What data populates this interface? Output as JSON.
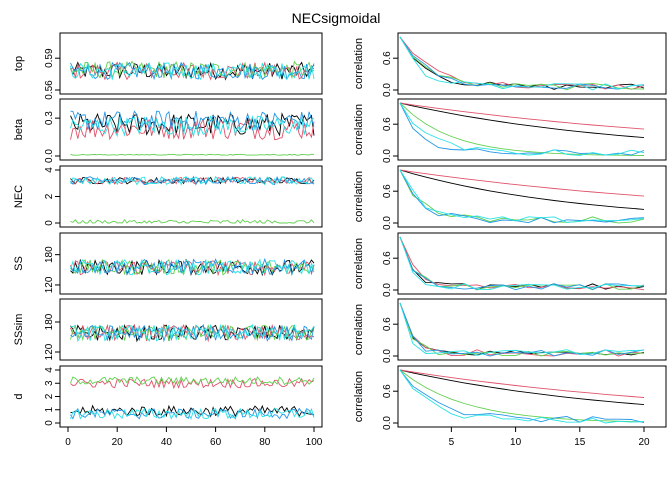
{
  "title": "NECsigmoidal",
  "trace": {
    "x_ticks": [
      "0",
      "20",
      "40",
      "60",
      "80",
      "100"
    ],
    "xlim": [
      0,
      100
    ]
  },
  "acf": {
    "ylabel": "correlation",
    "x_ticks": [
      "5",
      "10",
      "15",
      "20"
    ],
    "xlim": [
      1,
      20
    ],
    "ylim": [
      0,
      1
    ],
    "y_ticks": [
      "0.0",
      "0.6"
    ]
  },
  "series_colors": [
    "#000000",
    "#DF536B",
    "#61D04F",
    "#2297E6",
    "#28E2E5"
  ],
  "chart_data": {
    "type": "line",
    "description_kind": "MCMC trace plots (left) and autocorrelation plots (right)",
    "chains": 5,
    "iterations": 100,
    "parameters": [
      {
        "name": "top",
        "ylim": [
          0.56,
          0.61
        ],
        "y_ticks": [
          {
            "label": "0.56",
            "value": 0.56
          },
          {
            "label": "0.59",
            "value": 0.59
          }
        ],
        "trace": {
          "levels": [
            0.578,
            0.578,
            0.579,
            0.578,
            0.578
          ],
          "spread": [
            0.008,
            0.008,
            0.008,
            0.008,
            0.008
          ]
        },
        "acf_decay": [
          2.0,
          2.5,
          2.0,
          2.0,
          1.5
        ]
      },
      {
        "name": "beta",
        "ylim": [
          0.0,
          0.42
        ],
        "y_ticks": [
          {
            "label": "0.0",
            "value": 0.0
          },
          {
            "label": "0.3",
            "value": 0.3
          }
        ],
        "trace": {
          "levels": [
            0.25,
            0.22,
            0.01,
            0.28,
            0.24
          ],
          "spread": [
            0.09,
            0.09,
            0.004,
            0.08,
            0.08
          ]
        },
        "acf_decay": [
          18.0,
          28.0,
          4.0,
          1.5,
          2.0
        ]
      },
      {
        "name": "NEC",
        "ylim": [
          0,
          4
        ],
        "y_ticks": [
          {
            "label": "0",
            "value": 0
          },
          {
            "label": "2",
            "value": 2
          },
          {
            "label": "4",
            "value": 4
          }
        ],
        "trace": {
          "levels": [
            3.2,
            3.2,
            0.05,
            3.2,
            3.2
          ],
          "spread": [
            0.25,
            0.25,
            0.2,
            0.3,
            0.3
          ]
        },
        "acf_decay": [
          14.0,
          28.0,
          1.5,
          1.5,
          1.5
        ]
      },
      {
        "name": "SS",
        "ylim": [
          110,
          215
        ],
        "y_ticks": [
          {
            "label": "120",
            "value": 120
          },
          {
            "label": "180",
            "value": 180
          }
        ],
        "trace": {
          "levels": [
            155,
            155,
            155,
            156,
            155
          ],
          "spread": [
            15,
            15,
            15,
            15,
            15
          ]
        },
        "acf_decay": [
          1.0,
          1.0,
          1.0,
          1.0,
          0.8
        ]
      },
      {
        "name": "SSsim",
        "ylim": [
          112,
          218
        ],
        "y_ticks": [
          {
            "label": "120",
            "value": 120
          },
          {
            "label": "180",
            "value": 180
          }
        ],
        "trace": {
          "levels": [
            158,
            158,
            158,
            158,
            158
          ],
          "spread": [
            16,
            16,
            16,
            16,
            16
          ]
        },
        "acf_decay": [
          0.8,
          0.8,
          0.8,
          0.8,
          0.6
        ]
      },
      {
        "name": "d",
        "ylim": [
          0,
          4
        ],
        "y_ticks": [
          {
            "label": "0",
            "value": 0
          },
          {
            "label": "1",
            "value": 1
          },
          {
            "label": "2",
            "value": 2
          },
          {
            "label": "3",
            "value": 3
          },
          {
            "label": "4",
            "value": 4
          }
        ],
        "trace": {
          "levels": [
            0.9,
            3.0,
            3.2,
            0.7,
            0.7
          ],
          "spread": [
            0.4,
            0.35,
            0.3,
            0.4,
            0.4
          ]
        },
        "acf_decay": [
          18.0,
          26.0,
          5.0,
          2.5,
          2.0
        ]
      }
    ]
  }
}
